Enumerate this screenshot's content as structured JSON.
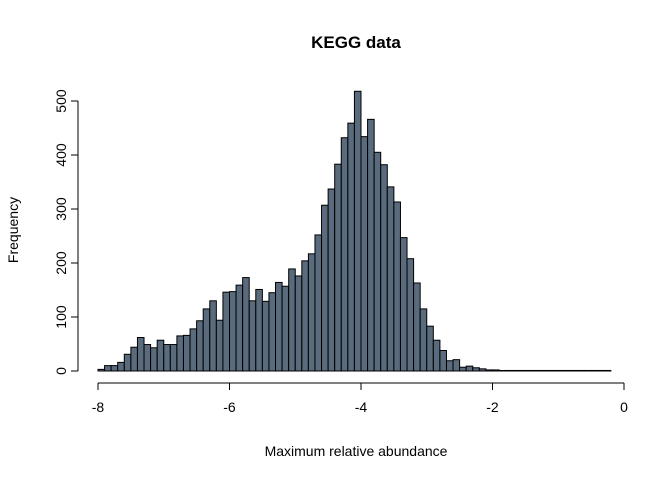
{
  "chart_data": {
    "type": "bar",
    "title": "KEGG data",
    "xlabel": "Maximum relative abundance",
    "ylabel": "Frequency",
    "xlim": [
      -8,
      0
    ],
    "ylim": [
      0,
      500
    ],
    "xticks": [
      -8,
      -6,
      -4,
      -2,
      0
    ],
    "yticks": [
      0,
      100,
      200,
      300,
      400,
      500
    ],
    "bin_width": 0.1,
    "bin_start": -8.0,
    "bar_color": "#5a6b7d",
    "edge_color": "#000000",
    "grid": false,
    "values": [
      3,
      10,
      10,
      16,
      31,
      44,
      62,
      49,
      43,
      57,
      49,
      49,
      65,
      66,
      78,
      93,
      115,
      130,
      94,
      146,
      147,
      159,
      173,
      130,
      151,
      129,
      145,
      164,
      157,
      189,
      176,
      204,
      217,
      252,
      307,
      337,
      383,
      432,
      459,
      518,
      434,
      466,
      405,
      382,
      341,
      313,
      247,
      208,
      163,
      115,
      83,
      57,
      38,
      19,
      21,
      7,
      9,
      6,
      4,
      2,
      2,
      1,
      1,
      1,
      1,
      1,
      1,
      1,
      1,
      1,
      1,
      1,
      1,
      1,
      1,
      1,
      1,
      1
    ]
  }
}
